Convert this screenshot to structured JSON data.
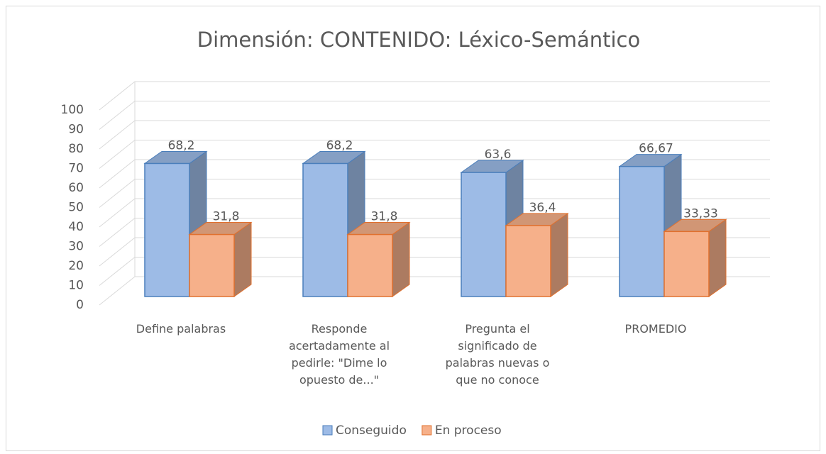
{
  "chart_data": {
    "type": "bar3d",
    "title": "Dimensión: CONTENIDO: Léxico-Semántico",
    "categories": [
      "Define palabras",
      "Responde acertadamente al pedirle: \"Dime lo opuesto de...\"",
      "Pregunta el significado de palabras nuevas o que no conoce",
      "PROMEDIO"
    ],
    "series": [
      {
        "name": "Conseguido",
        "color": "#9dbbe6",
        "values": [
          68.2,
          68.2,
          63.6,
          66.67
        ],
        "value_labels": [
          "68,2",
          "68,2",
          "63,6",
          "66,67"
        ]
      },
      {
        "name": "En proceso",
        "color": "#f6b08a",
        "values": [
          31.8,
          31.8,
          36.4,
          33.33
        ],
        "value_labels": [
          "31,8",
          "31,8",
          "36,4",
          "33,33"
        ]
      }
    ],
    "ylim": [
      0,
      100
    ],
    "yticks": [
      0,
      10,
      20,
      30,
      40,
      50,
      60,
      70,
      80,
      90,
      100
    ],
    "grid": true,
    "legend": "bottom"
  }
}
